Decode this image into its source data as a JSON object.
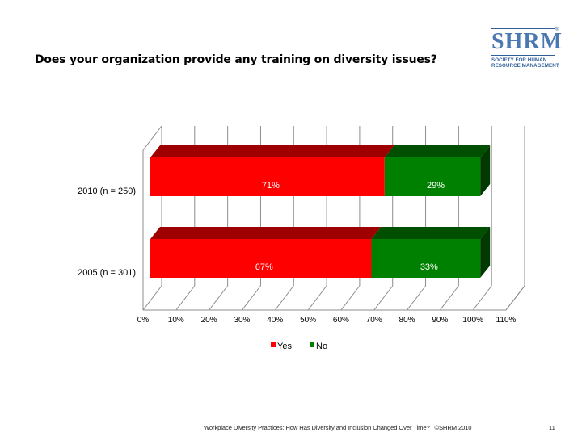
{
  "slide": {
    "title": "Does your organization provide any training on diversity issues?",
    "footer": "Workplace Diversity Practices: How Has Diversity and Inclusion Changed Over Time? | ©SHRM 2010",
    "page_number": "11"
  },
  "logo": {
    "letters": "SHRM",
    "registered": "®",
    "line1": "SOCIETY FOR HUMAN",
    "line2": "RESOURCE MANAGEMENT"
  },
  "chart_data": {
    "type": "bar",
    "orientation": "horizontal",
    "stacked": true,
    "style": "3d",
    "categories": [
      "2010 (n = 250)",
      "2005 (n = 301)"
    ],
    "series": [
      {
        "name": "Yes",
        "values": [
          71,
          67
        ],
        "labels": [
          "71%",
          "67%"
        ],
        "color": "#ff0000"
      },
      {
        "name": "No",
        "values": [
          29,
          33
        ],
        "labels": [
          "29%",
          "33%"
        ],
        "color": "#008000"
      }
    ],
    "x_ticks": [
      "0%",
      "10%",
      "20%",
      "30%",
      "40%",
      "50%",
      "60%",
      "70%",
      "80%",
      "90%",
      "100%",
      "110%"
    ],
    "xlim": [
      0,
      110
    ],
    "grid": "vertical",
    "legend": "bottom"
  }
}
